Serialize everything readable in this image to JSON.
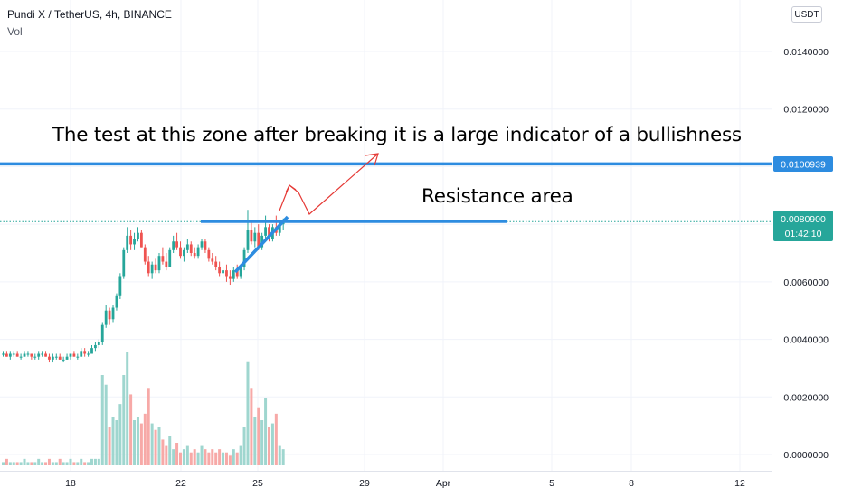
{
  "header": {
    "symbol_line": "Pundi X / TetherUS, 4h, BINANCE",
    "volume_label": "Vol"
  },
  "currency_button": "USDT",
  "colors": {
    "up": "#26a69a",
    "down": "#ef5350",
    "vol_up": "#9fd6cf",
    "vol_down": "#f7a9a7",
    "annotation_line": "#2d8ce0",
    "annotation_arrow": "#e53935",
    "grid": "#f0f3fa",
    "axis_text": "#131722"
  },
  "annotations": {
    "headline": "The test at this zone after breaking it is a large indicator of a bullishness",
    "resistance_label": "Resistance area",
    "resistance_level": 0.0081,
    "breakout_level": 0.0100939
  },
  "price_axis": {
    "ticks": [
      "0.0140000",
      "0.0120000",
      "0.0100000",
      "0.0080000",
      "0.0060000",
      "0.0040000",
      "0.0020000",
      "0.0000000"
    ],
    "tick_values": [
      0.014,
      0.012,
      0.01,
      0.008,
      0.006,
      0.004,
      0.002,
      0.0
    ],
    "level_tag_value": "0.0100939",
    "last_price_value": "0.0080900",
    "countdown": "01:42:10"
  },
  "time_axis": {
    "ticks": [
      "18",
      "22",
      "25",
      "29",
      "Apr",
      "5",
      "8",
      "12"
    ]
  },
  "chart_data": {
    "type": "candlestick",
    "series_name": "Pundi X / TetherUS",
    "interval": "4h",
    "ylim": [
      0.0,
      0.0148
    ],
    "x_start": "Mar 15",
    "ohlc": [
      [
        0.0035,
        0.0036,
        0.0034,
        0.0035
      ],
      [
        0.0035,
        0.0036,
        0.0034,
        0.0034
      ],
      [
        0.0034,
        0.0036,
        0.0033,
        0.0035
      ],
      [
        0.0035,
        0.0036,
        0.0034,
        0.0035
      ],
      [
        0.0035,
        0.0036,
        0.0034,
        0.0034
      ],
      [
        0.0034,
        0.0035,
        0.0033,
        0.0034
      ],
      [
        0.0034,
        0.0036,
        0.0034,
        0.0035
      ],
      [
        0.0035,
        0.0036,
        0.0034,
        0.0035
      ],
      [
        0.0035,
        0.0035,
        0.0033,
        0.0034
      ],
      [
        0.0034,
        0.0035,
        0.0033,
        0.0034
      ],
      [
        0.0034,
        0.0036,
        0.0033,
        0.0035
      ],
      [
        0.0035,
        0.0036,
        0.0034,
        0.0035
      ],
      [
        0.0035,
        0.0036,
        0.0034,
        0.0034
      ],
      [
        0.0034,
        0.0035,
        0.0032,
        0.0033
      ],
      [
        0.0033,
        0.0035,
        0.0032,
        0.0034
      ],
      [
        0.0034,
        0.0035,
        0.0033,
        0.0034
      ],
      [
        0.0034,
        0.0035,
        0.0033,
        0.0033
      ],
      [
        0.0033,
        0.0034,
        0.0032,
        0.0033
      ],
      [
        0.0033,
        0.0035,
        0.0033,
        0.0034
      ],
      [
        0.0034,
        0.0035,
        0.0033,
        0.0035
      ],
      [
        0.0035,
        0.0036,
        0.0034,
        0.0034
      ],
      [
        0.0034,
        0.0035,
        0.0033,
        0.0034
      ],
      [
        0.0034,
        0.0037,
        0.0034,
        0.0036
      ],
      [
        0.0036,
        0.0037,
        0.0034,
        0.0035
      ],
      [
        0.0035,
        0.0036,
        0.0034,
        0.0035
      ],
      [
        0.0035,
        0.0038,
        0.0035,
        0.0037
      ],
      [
        0.0037,
        0.0039,
        0.0036,
        0.0038
      ],
      [
        0.0038,
        0.004,
        0.0037,
        0.0039
      ],
      [
        0.0039,
        0.0046,
        0.0038,
        0.0045
      ],
      [
        0.0045,
        0.0052,
        0.0044,
        0.005
      ],
      [
        0.005,
        0.0051,
        0.0045,
        0.0047
      ],
      [
        0.0047,
        0.0052,
        0.0046,
        0.0051
      ],
      [
        0.0051,
        0.0056,
        0.005,
        0.0055
      ],
      [
        0.0055,
        0.0063,
        0.0054,
        0.0062
      ],
      [
        0.0062,
        0.0072,
        0.0061,
        0.0071
      ],
      [
        0.0071,
        0.0079,
        0.007,
        0.0076
      ],
      [
        0.0076,
        0.0078,
        0.0071,
        0.0073
      ],
      [
        0.0073,
        0.0077,
        0.0071,
        0.0075
      ],
      [
        0.0075,
        0.0079,
        0.0074,
        0.0077
      ],
      [
        0.0077,
        0.0078,
        0.0072,
        0.0072
      ],
      [
        0.0072,
        0.0073,
        0.0066,
        0.0067
      ],
      [
        0.0067,
        0.0069,
        0.0062,
        0.0063
      ],
      [
        0.0063,
        0.0067,
        0.0061,
        0.0066
      ],
      [
        0.0066,
        0.0068,
        0.0063,
        0.0064
      ],
      [
        0.0064,
        0.007,
        0.0063,
        0.0069
      ],
      [
        0.0069,
        0.0072,
        0.0066,
        0.0067
      ],
      [
        0.0067,
        0.007,
        0.0064,
        0.0065
      ],
      [
        0.0065,
        0.0072,
        0.0065,
        0.0071
      ],
      [
        0.0071,
        0.0076,
        0.007,
        0.0074
      ],
      [
        0.0074,
        0.0077,
        0.0071,
        0.0072
      ],
      [
        0.0072,
        0.0074,
        0.0068,
        0.0069
      ],
      [
        0.0069,
        0.0072,
        0.0067,
        0.0071
      ],
      [
        0.0071,
        0.0075,
        0.007,
        0.0073
      ],
      [
        0.0073,
        0.0074,
        0.0069,
        0.007
      ],
      [
        0.007,
        0.0072,
        0.0068,
        0.0069
      ],
      [
        0.0069,
        0.0073,
        0.0068,
        0.0072
      ],
      [
        0.0072,
        0.0075,
        0.0071,
        0.0074
      ],
      [
        0.0074,
        0.0075,
        0.007,
        0.0071
      ],
      [
        0.0071,
        0.0072,
        0.0067,
        0.0068
      ],
      [
        0.0068,
        0.007,
        0.0066,
        0.0067
      ],
      [
        0.0067,
        0.0069,
        0.0064,
        0.0065
      ],
      [
        0.0065,
        0.0067,
        0.0062,
        0.0063
      ],
      [
        0.0063,
        0.0065,
        0.0061,
        0.0064
      ],
      [
        0.0064,
        0.0066,
        0.006,
        0.0062
      ],
      [
        0.0062,
        0.0064,
        0.0059,
        0.0061
      ],
      [
        0.0061,
        0.0065,
        0.006,
        0.0064
      ],
      [
        0.0064,
        0.0066,
        0.0061,
        0.0062
      ],
      [
        0.0062,
        0.0066,
        0.0061,
        0.0065
      ],
      [
        0.0065,
        0.0072,
        0.0064,
        0.0071
      ],
      [
        0.0071,
        0.0085,
        0.007,
        0.0078
      ],
      [
        0.0078,
        0.0081,
        0.0073,
        0.0074
      ],
      [
        0.0074,
        0.0079,
        0.0072,
        0.0077
      ],
      [
        0.0077,
        0.008,
        0.0071,
        0.0072
      ],
      [
        0.0072,
        0.0077,
        0.0071,
        0.0076
      ],
      [
        0.0076,
        0.0083,
        0.0075,
        0.0079
      ],
      [
        0.0079,
        0.008,
        0.0074,
        0.0075
      ],
      [
        0.0075,
        0.008,
        0.0074,
        0.0079
      ],
      [
        0.0079,
        0.0083,
        0.0076,
        0.0077
      ],
      [
        0.0077,
        0.0081,
        0.0076,
        0.008
      ],
      [
        0.008,
        0.0082,
        0.0078,
        0.0081
      ]
    ],
    "volume": [
      0.0001,
      0.0002,
      0.0001,
      0.0001,
      0.0001,
      0.0001,
      0.0002,
      0.0001,
      0.0001,
      0.0001,
      0.0002,
      0.0001,
      0.0001,
      0.0002,
      0.0001,
      0.0001,
      0.0002,
      0.0001,
      0.0001,
      0.0002,
      0.0001,
      0.0001,
      0.0002,
      0.0001,
      0.0001,
      0.0002,
      0.0002,
      0.0002,
      0.0028,
      0.0025,
      0.0012,
      0.0015,
      0.0014,
      0.0019,
      0.0028,
      0.0035,
      0.0022,
      0.0014,
      0.0015,
      0.0013,
      0.0016,
      0.0024,
      0.0013,
      0.0011,
      0.0012,
      0.0008,
      0.0006,
      0.0009,
      0.0005,
      0.0007,
      0.0004,
      0.0005,
      0.0006,
      0.0004,
      0.0005,
      0.0004,
      0.0006,
      0.0005,
      0.0004,
      0.0005,
      0.0004,
      0.0005,
      0.0004,
      0.0004,
      0.0003,
      0.0005,
      0.0004,
      0.0006,
      0.0012,
      0.0032,
      0.0024,
      0.0015,
      0.0018,
      0.0014,
      0.0021,
      0.0012,
      0.0013,
      0.0016,
      0.0006,
      0.0005
    ]
  }
}
